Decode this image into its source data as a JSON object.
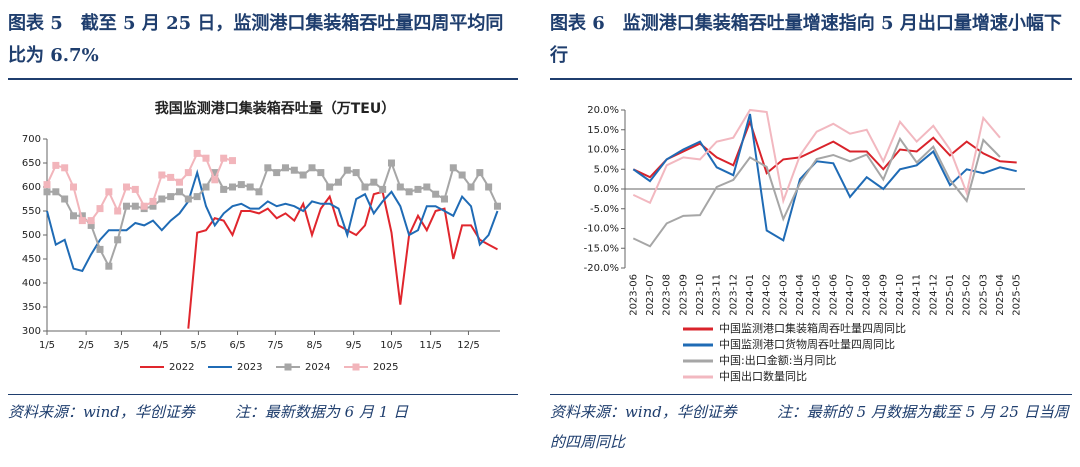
{
  "headers": [
    "图表 5　截至 5 月 25 日，监测港口集装箱吞吐量四周平均同比为 6.7%",
    "图表 6　监测港口集装箱吞吐量增速指向 5 月出口量增速小幅下行"
  ],
  "footers": [
    [
      "资料来源：wind，华创证券",
      "注：最新数据为 6 月 1 日"
    ],
    [
      "资料来源：wind，华创证券",
      "注：最新的 5 月数据为截至 5 月 25 日当周的四周同比"
    ]
  ],
  "chart_data": [
    {
      "type": "line",
      "title": "我国监测港口集装箱吞吐量（万TEU）",
      "legend": "bottom",
      "x": [
        5,
        12,
        19,
        26,
        33,
        40,
        47,
        54,
        61,
        68,
        75,
        82,
        89,
        96,
        103,
        110,
        117,
        124,
        131,
        138,
        145,
        152,
        159,
        166,
        173,
        180,
        187,
        194,
        201,
        208,
        215,
        222,
        229,
        236,
        243,
        250,
        257,
        264,
        271,
        278,
        285,
        292,
        299,
        306,
        313,
        320,
        327,
        334,
        341,
        348,
        355,
        362
      ],
      "xlim": [
        5,
        364
      ],
      "xticks": [
        {
          "value": 5,
          "label": "1/5"
        },
        {
          "value": 36,
          "label": "2/5"
        },
        {
          "value": 64,
          "label": "3/5"
        },
        {
          "value": 95,
          "label": "4/5"
        },
        {
          "value": 125,
          "label": "5/5"
        },
        {
          "value": 156,
          "label": "6/5"
        },
        {
          "value": 186,
          "label": "7/5"
        },
        {
          "value": 217,
          "label": "8/5"
        },
        {
          "value": 248,
          "label": "9/5"
        },
        {
          "value": 278,
          "label": "10/5"
        },
        {
          "value": 309,
          "label": "11/5"
        },
        {
          "value": 339,
          "label": "12/5"
        }
      ],
      "ylim": [
        300,
        700
      ],
      "yticks": [
        300,
        350,
        400,
        450,
        500,
        550,
        600,
        650,
        700
      ],
      "grid": false,
      "series": [
        {
          "name": "2022",
          "color": "#e0262d",
          "marker": "none",
          "values": [
            null,
            null,
            null,
            null,
            null,
            null,
            null,
            null,
            null,
            null,
            null,
            null,
            null,
            null,
            null,
            null,
            305,
            505,
            510,
            535,
            530,
            500,
            550,
            550,
            545,
            555,
            535,
            545,
            530,
            565,
            500,
            555,
            580,
            520,
            510,
            500,
            520,
            585,
            590,
            505,
            355,
            500,
            540,
            510,
            550,
            555,
            450,
            520,
            520,
            490,
            480,
            470
          ]
        },
        {
          "name": "2023",
          "color": "#1f6bb5",
          "marker": "none",
          "values": [
            550,
            480,
            490,
            430,
            425,
            460,
            490,
            510,
            510,
            510,
            525,
            520,
            530,
            510,
            530,
            545,
            570,
            630,
            560,
            520,
            545,
            560,
            565,
            555,
            555,
            570,
            560,
            565,
            560,
            550,
            570,
            565,
            565,
            555,
            500,
            575,
            585,
            545,
            570,
            590,
            560,
            500,
            510,
            560,
            560,
            550,
            540,
            580,
            560,
            480,
            500,
            550
          ]
        },
        {
          "name": "2024",
          "color": "#a6a6a6",
          "marker": "square",
          "values": [
            590,
            590,
            575,
            540,
            540,
            520,
            470,
            435,
            490,
            560,
            560,
            555,
            560,
            575,
            580,
            590,
            575,
            580,
            600,
            630,
            595,
            600,
            605,
            600,
            590,
            640,
            630,
            640,
            635,
            625,
            640,
            630,
            600,
            610,
            635,
            630,
            600,
            610,
            595,
            650,
            600,
            590,
            595,
            600,
            585,
            575,
            640,
            625,
            600,
            630,
            600,
            560
          ]
        },
        {
          "name": "2025",
          "color": "#f2b5bb",
          "marker": "square",
          "values": [
            605,
            645,
            640,
            600,
            530,
            530,
            555,
            590,
            550,
            600,
            595,
            560,
            570,
            625,
            620,
            610,
            630,
            670,
            660,
            615,
            660,
            655,
            null,
            null,
            null,
            null,
            null,
            null,
            null,
            null,
            null,
            null,
            null,
            null,
            null,
            null,
            null,
            null,
            null,
            null,
            null,
            null,
            null,
            null,
            null,
            null,
            null,
            null,
            null,
            null,
            null,
            null
          ]
        }
      ]
    },
    {
      "type": "line",
      "legend": "bottom",
      "categories": [
        "2023-06",
        "2023-07",
        "2023-08",
        "2023-09",
        "2023-10",
        "2023-11",
        "2023-12",
        "2024-01",
        "2024-02",
        "2024-03",
        "2024-04",
        "2024-05",
        "2024-06",
        "2024-07",
        "2024-08",
        "2024-09",
        "2024-10",
        "2024-11",
        "2024-12",
        "2025-01",
        "2025-02",
        "2025-03",
        "2025-04",
        "2025-05"
      ],
      "ylim": [
        -20,
        20
      ],
      "yticks": [
        {
          "value": 20,
          "label": "20.0%"
        },
        {
          "value": 15,
          "label": "15.0%"
        },
        {
          "value": 10,
          "label": "10.0%"
        },
        {
          "value": 5,
          "label": "5.0%"
        },
        {
          "value": 0,
          "label": "0.0%"
        },
        {
          "value": -5,
          "label": "-5.0%"
        },
        {
          "value": -10,
          "label": "-10.0%"
        },
        {
          "value": -15,
          "label": "-15.0%"
        },
        {
          "value": -20,
          "label": "-20.0%"
        }
      ],
      "grid": false,
      "series": [
        {
          "name": "中国监测港口集装箱周吞吐量四周同比",
          "color": "#d9232b",
          "marker": "none",
          "values": [
            5,
            3,
            7.5,
            9.5,
            11.5,
            8,
            6,
            17,
            4,
            7.5,
            8,
            10,
            12,
            9.5,
            9.5,
            5,
            10,
            9.5,
            13,
            8.5,
            12,
            9,
            7,
            6.7
          ]
        },
        {
          "name": "中国监测港口货物周吞吐量四周同比",
          "color": "#1f6bb5",
          "marker": "none",
          "values": [
            5,
            2,
            7.5,
            10,
            12,
            5.5,
            3.5,
            19,
            -10.5,
            -13,
            2.5,
            7,
            6.5,
            -2,
            3,
            0,
            5,
            6,
            9.5,
            1,
            5,
            4,
            5.5,
            4.5
          ]
        },
        {
          "name": "中国:出口金额:当月同比",
          "color": "#a6a6a6",
          "marker": "none",
          "values": [
            -12.5,
            -14.5,
            -8.7,
            -6.8,
            -6.6,
            0.5,
            2.3,
            8,
            5.6,
            -7.6,
            1.5,
            7.6,
            8.6,
            7,
            8.7,
            2.4,
            12.7,
            6.7,
            10.7,
            2.3,
            -3,
            12.4,
            8.1,
            null
          ]
        },
        {
          "name": "中国出口数量同比",
          "color": "#f2b8c0",
          "marker": "none",
          "values": [
            -1.5,
            -3.5,
            6,
            8,
            7.5,
            12,
            13,
            20,
            19.5,
            -3,
            8.5,
            14.5,
            16.5,
            14,
            15,
            7,
            17,
            12,
            16,
            10,
            -1,
            18,
            13,
            null
          ]
        }
      ]
    }
  ]
}
